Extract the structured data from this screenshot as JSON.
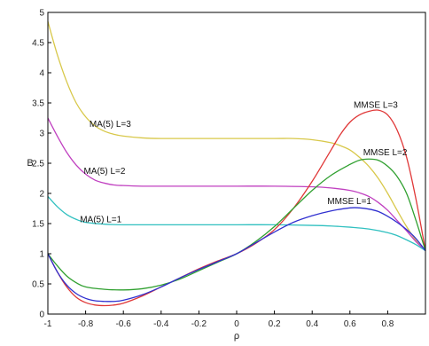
{
  "chart_data": {
    "type": "line",
    "title": "",
    "xlabel": "ρ",
    "ylabel": "B",
    "xlim": [
      -1,
      1
    ],
    "ylim": [
      0,
      5
    ],
    "xticks": [
      -1,
      -0.8,
      -0.6,
      -0.4,
      -0.2,
      0,
      0.2,
      0.4,
      0.6,
      0.8
    ],
    "xtick_labels": [
      "-1",
      "-0.8",
      "-0.6",
      "-0.4",
      "-0.2",
      "0",
      "0.2",
      "0.4",
      "0.6",
      "0.8"
    ],
    "yticks": [
      0,
      0.5,
      1,
      1.5,
      2,
      2.5,
      3,
      3.5,
      4,
      4.5,
      5
    ],
    "ytick_labels": [
      "0",
      "0.5",
      "1",
      "1.5",
      "2",
      "2.5",
      "3",
      "3.5",
      "4",
      "4.5",
      "5"
    ],
    "grid": false,
    "series": [
      {
        "name": "MA(5) L=3",
        "color": "#d8c84a",
        "points": [
          [
            -1,
            4.85
          ],
          [
            -0.95,
            4.3
          ],
          [
            -0.9,
            3.85
          ],
          [
            -0.85,
            3.5
          ],
          [
            -0.8,
            3.27
          ],
          [
            -0.75,
            3.12
          ],
          [
            -0.7,
            3.03
          ],
          [
            -0.65,
            2.98
          ],
          [
            -0.6,
            2.95
          ],
          [
            -0.5,
            2.92
          ],
          [
            -0.4,
            2.91
          ],
          [
            -0.2,
            2.91
          ],
          [
            0,
            2.91
          ],
          [
            0.2,
            2.91
          ],
          [
            0.3,
            2.91
          ],
          [
            0.4,
            2.89
          ],
          [
            0.5,
            2.84
          ],
          [
            0.55,
            2.79
          ],
          [
            0.6,
            2.72
          ],
          [
            0.65,
            2.6
          ],
          [
            0.7,
            2.45
          ],
          [
            0.75,
            2.25
          ],
          [
            0.8,
            2.0
          ],
          [
            0.85,
            1.72
          ],
          [
            0.9,
            1.45
          ],
          [
            0.95,
            1.22
          ],
          [
            1.0,
            1.05
          ]
        ]
      },
      {
        "name": "MA(5) L=2",
        "color": "#c040c0",
        "points": [
          [
            -1,
            3.25
          ],
          [
            -0.95,
            2.95
          ],
          [
            -0.9,
            2.68
          ],
          [
            -0.85,
            2.47
          ],
          [
            -0.8,
            2.32
          ],
          [
            -0.75,
            2.22
          ],
          [
            -0.7,
            2.17
          ],
          [
            -0.65,
            2.14
          ],
          [
            -0.6,
            2.13
          ],
          [
            -0.5,
            2.12
          ],
          [
            -0.4,
            2.12
          ],
          [
            -0.2,
            2.12
          ],
          [
            0,
            2.12
          ],
          [
            0.2,
            2.12
          ],
          [
            0.4,
            2.11
          ],
          [
            0.5,
            2.09
          ],
          [
            0.6,
            2.05
          ],
          [
            0.65,
            2.01
          ],
          [
            0.7,
            1.95
          ],
          [
            0.75,
            1.85
          ],
          [
            0.8,
            1.72
          ],
          [
            0.85,
            1.55
          ],
          [
            0.9,
            1.38
          ],
          [
            0.95,
            1.2
          ],
          [
            1.0,
            1.05
          ]
        ]
      },
      {
        "name": "MA(5) L=1",
        "color": "#30c0c0",
        "points": [
          [
            -1,
            1.95
          ],
          [
            -0.95,
            1.78
          ],
          [
            -0.9,
            1.65
          ],
          [
            -0.85,
            1.57
          ],
          [
            -0.8,
            1.52
          ],
          [
            -0.7,
            1.49
          ],
          [
            -0.6,
            1.48
          ],
          [
            -0.4,
            1.48
          ],
          [
            -0.2,
            1.48
          ],
          [
            0,
            1.48
          ],
          [
            0.2,
            1.48
          ],
          [
            0.4,
            1.47
          ],
          [
            0.5,
            1.46
          ],
          [
            0.6,
            1.44
          ],
          [
            0.7,
            1.41
          ],
          [
            0.8,
            1.35
          ],
          [
            0.85,
            1.3
          ],
          [
            0.9,
            1.23
          ],
          [
            0.95,
            1.15
          ],
          [
            1.0,
            1.05
          ]
        ]
      },
      {
        "name": "MMSE L=3",
        "color": "#e03838",
        "points": [
          [
            -1,
            1.0
          ],
          [
            -0.95,
            0.7
          ],
          [
            -0.9,
            0.45
          ],
          [
            -0.85,
            0.28
          ],
          [
            -0.8,
            0.19
          ],
          [
            -0.75,
            0.15
          ],
          [
            -0.7,
            0.14
          ],
          [
            -0.65,
            0.15
          ],
          [
            -0.6,
            0.18
          ],
          [
            -0.5,
            0.3
          ],
          [
            -0.4,
            0.45
          ],
          [
            -0.3,
            0.6
          ],
          [
            -0.2,
            0.75
          ],
          [
            -0.1,
            0.88
          ],
          [
            0,
            1.0
          ],
          [
            0.1,
            1.17
          ],
          [
            0.2,
            1.4
          ],
          [
            0.3,
            1.75
          ],
          [
            0.4,
            2.2
          ],
          [
            0.5,
            2.72
          ],
          [
            0.55,
            2.98
          ],
          [
            0.6,
            3.18
          ],
          [
            0.65,
            3.3
          ],
          [
            0.7,
            3.36
          ],
          [
            0.75,
            3.38
          ],
          [
            0.8,
            3.3
          ],
          [
            0.85,
            3.05
          ],
          [
            0.9,
            2.6
          ],
          [
            0.95,
            1.9
          ],
          [
            1.0,
            1.05
          ]
        ]
      },
      {
        "name": "MMSE L=2",
        "color": "#30a030",
        "points": [
          [
            -1,
            1.0
          ],
          [
            -0.95,
            0.8
          ],
          [
            -0.9,
            0.63
          ],
          [
            -0.85,
            0.52
          ],
          [
            -0.8,
            0.45
          ],
          [
            -0.7,
            0.41
          ],
          [
            -0.6,
            0.4
          ],
          [
            -0.5,
            0.42
          ],
          [
            -0.4,
            0.48
          ],
          [
            -0.3,
            0.58
          ],
          [
            -0.2,
            0.72
          ],
          [
            -0.1,
            0.86
          ],
          [
            0,
            1.0
          ],
          [
            0.1,
            1.2
          ],
          [
            0.2,
            1.45
          ],
          [
            0.3,
            1.75
          ],
          [
            0.4,
            2.05
          ],
          [
            0.5,
            2.3
          ],
          [
            0.6,
            2.48
          ],
          [
            0.65,
            2.55
          ],
          [
            0.7,
            2.57
          ],
          [
            0.75,
            2.55
          ],
          [
            0.8,
            2.45
          ],
          [
            0.85,
            2.28
          ],
          [
            0.9,
            2.0
          ],
          [
            0.95,
            1.55
          ],
          [
            1.0,
            1.05
          ]
        ]
      },
      {
        "name": "MMSE L=1",
        "color": "#3030d0",
        "points": [
          [
            -1,
            1.0
          ],
          [
            -0.95,
            0.7
          ],
          [
            -0.9,
            0.48
          ],
          [
            -0.85,
            0.34
          ],
          [
            -0.8,
            0.26
          ],
          [
            -0.75,
            0.22
          ],
          [
            -0.7,
            0.21
          ],
          [
            -0.65,
            0.21
          ],
          [
            -0.6,
            0.23
          ],
          [
            -0.5,
            0.32
          ],
          [
            -0.4,
            0.45
          ],
          [
            -0.3,
            0.6
          ],
          [
            -0.2,
            0.74
          ],
          [
            -0.1,
            0.87
          ],
          [
            0,
            1.0
          ],
          [
            0.1,
            1.18
          ],
          [
            0.2,
            1.36
          ],
          [
            0.3,
            1.52
          ],
          [
            0.4,
            1.63
          ],
          [
            0.5,
            1.71
          ],
          [
            0.6,
            1.76
          ],
          [
            0.65,
            1.76
          ],
          [
            0.7,
            1.74
          ],
          [
            0.75,
            1.7
          ],
          [
            0.8,
            1.62
          ],
          [
            0.85,
            1.52
          ],
          [
            0.9,
            1.4
          ],
          [
            0.95,
            1.25
          ],
          [
            1.0,
            1.05
          ]
        ]
      }
    ],
    "annotations": [
      {
        "text": "MA(5) L=3",
        "x": -0.78,
        "y": 3.1
      },
      {
        "text": "MA(5) L=2",
        "x": -0.81,
        "y": 2.32
      },
      {
        "text": "MA(5) L=1",
        "x": -0.83,
        "y": 1.52
      },
      {
        "text": "MMSE L=3",
        "x": 0.62,
        "y": 3.42
      },
      {
        "text": "MMSE L=2",
        "x": 0.67,
        "y": 2.63
      },
      {
        "text": "MMSE L=1",
        "x": 0.48,
        "y": 1.82
      }
    ]
  }
}
